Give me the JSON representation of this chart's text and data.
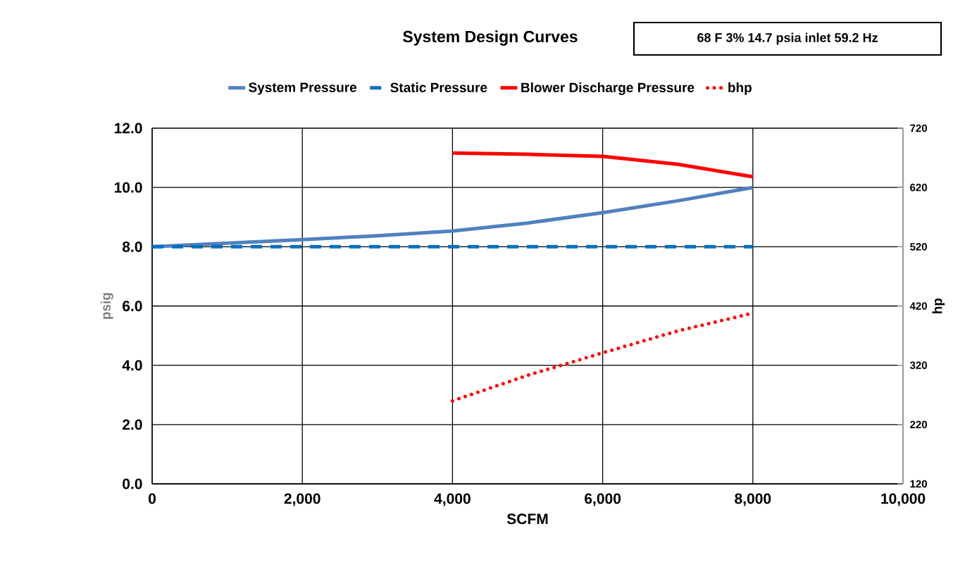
{
  "chart_data": {
    "type": "line",
    "title": "System Design Curves",
    "annotations": [
      "68 F 3% 14.7 psia inlet 59.2 Hz"
    ],
    "xlabel": "SCFM",
    "ylabel": "psig",
    "y2label": "hp",
    "xlim": [
      0,
      10000
    ],
    "xticks": [
      {
        "value": 0,
        "label": "0"
      },
      {
        "value": 2000,
        "label": "2,000"
      },
      {
        "value": 4000,
        "label": "4,000"
      },
      {
        "value": 6000,
        "label": "6,000"
      },
      {
        "value": 8000,
        "label": "8,000"
      },
      {
        "value": 10000,
        "label": "10,000"
      }
    ],
    "ylim": [
      0,
      12
    ],
    "yticks": [
      {
        "value": 0,
        "label": "0.0"
      },
      {
        "value": 2,
        "label": "2.0"
      },
      {
        "value": 4,
        "label": "4.0"
      },
      {
        "value": 6,
        "label": "6.0"
      },
      {
        "value": 8,
        "label": "8.0"
      },
      {
        "value": 10,
        "label": "10.0"
      },
      {
        "value": 12,
        "label": "12.0"
      }
    ],
    "y2lim": [
      120,
      720
    ],
    "y2ticks": [
      120,
      220,
      320,
      420,
      520,
      620,
      720
    ],
    "grid": true,
    "legend": "top",
    "marker": "none",
    "series": [
      {
        "name": "System Pressure",
        "color": "#4f81bd",
        "line_style": "solid",
        "x": [
          0,
          1000,
          2000,
          3000,
          4000,
          5000,
          6000,
          7000,
          8000
        ],
        "values": [
          8.0,
          8.12,
          8.24,
          8.37,
          8.53,
          8.8,
          9.15,
          9.55,
          10.0
        ]
      },
      {
        "name": "Static Pressure",
        "color": "#0070c0",
        "line_style": "dashed",
        "x": [
          0,
          8000
        ],
        "values": [
          8.0,
          8.0
        ]
      },
      {
        "name": "Blower Discharge Pressure",
        "color": "#ff0000",
        "line_style": "solid",
        "x": [
          4000,
          5000,
          6000,
          7000,
          8000
        ],
        "values": [
          11.16,
          11.12,
          11.05,
          10.78,
          10.36
        ]
      },
      {
        "name": "bhp",
        "color": "#ff0000",
        "line_style": "dotted",
        "axis": "y2",
        "x": [
          4000,
          5000,
          6000,
          7000,
          8000
        ],
        "values": [
          260,
          303,
          341,
          378,
          408
        ]
      }
    ]
  }
}
